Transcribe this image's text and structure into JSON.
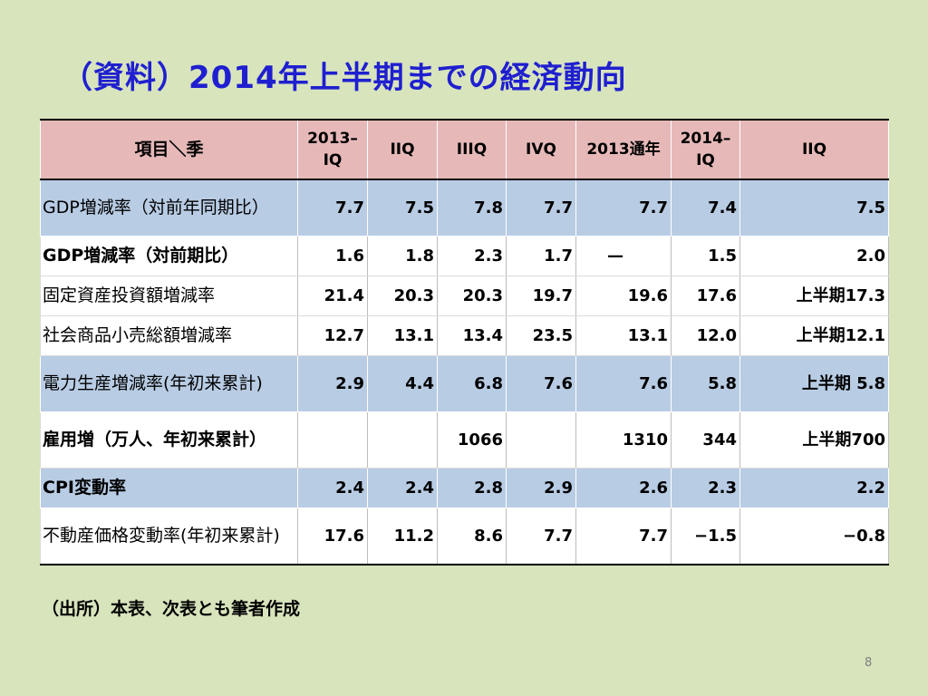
{
  "title": "（資料）2014年上半期までの経済動向",
  "table": {
    "headers": [
      "項目＼季",
      "2013–IQ",
      "IIQ",
      "IIIQ",
      "IVQ",
      "2013通年",
      "2014–IQ",
      "IIQ"
    ],
    "rows": [
      {
        "label": "GDP増減率（対前年同期比）",
        "cells": [
          "7.7",
          "7.5",
          "7.8",
          "7.7",
          "7.7",
          "7.4",
          "7.5"
        ]
      },
      {
        "label": "GDP増減率（対前期比）",
        "cells": [
          "1.6",
          "1.8",
          "2.3",
          "1.7",
          "—",
          "1.5",
          "2.0"
        ]
      },
      {
        "label": "固定資産投資額増減率",
        "cells": [
          "21.4",
          "20.3",
          "20.3",
          "19.7",
          "19.6",
          "17.6",
          "上半期17.3"
        ]
      },
      {
        "label": "社会商品小売総額増減率",
        "cells": [
          "12.7",
          "13.1",
          "13.4",
          "23.5",
          "13.1",
          "12.0",
          "上半期12.1"
        ]
      },
      {
        "label": "電力生産増減率(年初来累計)",
        "cells": [
          "2.9",
          "4.4",
          "6.8",
          "7.6",
          "7.6",
          "5.8",
          "上半期 5.8"
        ]
      },
      {
        "label": "雇用増（万人、年初来累計）",
        "cells": [
          "",
          "",
          "1066",
          "",
          "1310",
          "344",
          "上半期700"
        ]
      },
      {
        "label": "CPI変動率",
        "cells": [
          "2.4",
          "2.4",
          "2.8",
          "2.9",
          "2.6",
          "2.3",
          "2.2"
        ]
      },
      {
        "label": "不動産価格変動率(年初来累計)",
        "cells": [
          "17.6",
          "11.2",
          "8.6",
          "7.7",
          "7.7",
          "−1.5",
          "−0.8"
        ]
      }
    ]
  },
  "source": "（出所）本表、次表とも筆者作成",
  "page_number": "8",
  "colors": {
    "background": "#d8e4bc",
    "title": "#1f1fd0",
    "header_fill": "#e6b9b8",
    "blue_row_fill": "#b8cce4",
    "white_row_fill": "#ffffff"
  }
}
